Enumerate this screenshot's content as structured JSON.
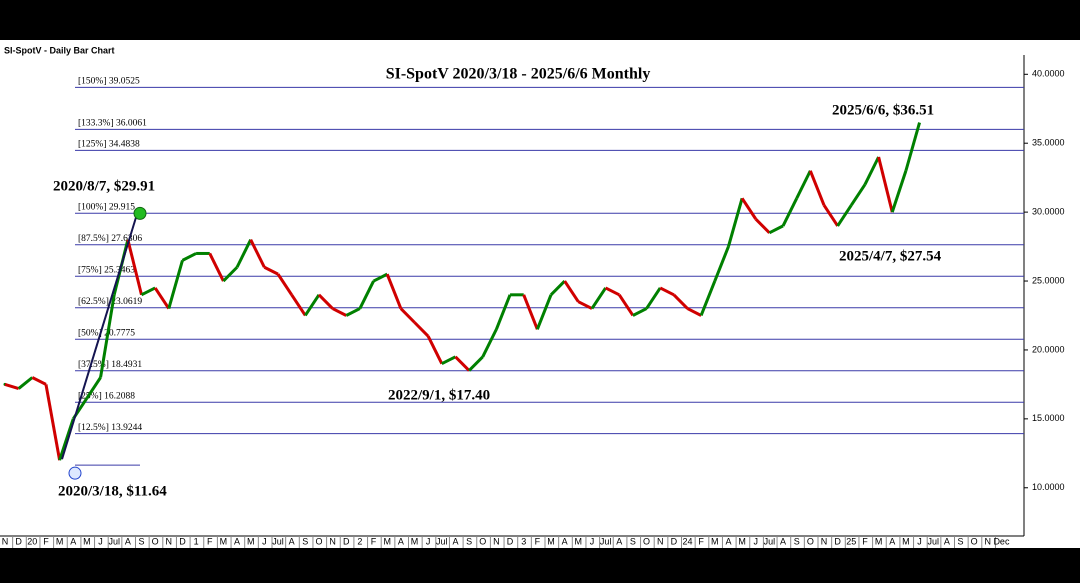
{
  "chart_data": {
    "type": "line",
    "header": "SI-SpotV - Daily Bar Chart",
    "title": "SI-SpotV 2020/3/18 - 2025/6/6 Monthly",
    "categories": [
      "N",
      "D",
      "20",
      "F",
      "M",
      "A",
      "M",
      "J",
      "Jul",
      "A",
      "S",
      "O",
      "N",
      "D",
      "1",
      "F",
      "M",
      "A",
      "M",
      "J",
      "Jul",
      "A",
      "S",
      "O",
      "N",
      "D",
      "2",
      "F",
      "M",
      "A",
      "M",
      "J",
      "Jul",
      "A",
      "S",
      "O",
      "N",
      "D",
      "3",
      "F",
      "M",
      "A",
      "M",
      "J",
      "Jul",
      "A",
      "S",
      "O",
      "N",
      "D",
      "24",
      "F",
      "M",
      "A",
      "M",
      "J",
      "Jul",
      "A",
      "S",
      "O",
      "N",
      "D",
      "25",
      "F",
      "M",
      "A",
      "M",
      "J",
      "Jul",
      "A",
      "S",
      "O",
      "N",
      "Dec"
    ],
    "series": [
      {
        "name": "SI-SpotV",
        "up_color": "#008000",
        "down_color": "#d00000",
        "values": [
          17.5,
          17.2,
          18,
          17.5,
          12,
          15,
          16.5,
          18,
          24,
          28,
          24,
          24.5,
          23,
          26.5,
          27,
          27,
          25,
          26,
          28,
          26,
          25.5,
          24,
          22.5,
          24,
          23,
          22.5,
          23,
          25,
          25.5,
          23,
          22,
          21,
          19,
          19.5,
          18.5,
          19.5,
          21.5,
          24,
          24,
          21.5,
          24,
          25,
          23.5,
          23,
          24.5,
          24,
          22.5,
          23,
          24.5,
          24,
          23,
          22.5,
          25,
          27.5,
          31,
          29.5,
          28.5,
          29,
          31,
          33,
          30.5,
          29,
          30.5,
          32,
          34,
          30,
          33,
          36.5,
          null,
          null,
          null,
          null,
          null,
          null
        ]
      }
    ],
    "fib_levels": [
      {
        "value": 39.0525,
        "label": "[150%] 39.0525"
      },
      {
        "value": 36.0061,
        "label": "[133.3%] 36.0061"
      },
      {
        "value": 34.4838,
        "label": "[125%] 34.4838"
      },
      {
        "value": 29.915,
        "label": "[100%] 29.915"
      },
      {
        "value": 27.6306,
        "label": "[87.5%] 27.6306"
      },
      {
        "value": 25.3463,
        "label": "[75%] 25.3463"
      },
      {
        "value": 23.0619,
        "label": "[62.5%] 23.0619"
      },
      {
        "value": 20.7775,
        "label": "[50%] 20.7775"
      },
      {
        "value": 18.4931,
        "label": "[37.5%] 18.4931"
      },
      {
        "value": 16.2088,
        "label": "[25%] 16.2088"
      },
      {
        "value": 13.9244,
        "label": "[12.5%] 13.9244"
      }
    ],
    "annotations": [
      {
        "text": "2020/3/18, $11.64",
        "value": 11.64
      },
      {
        "text": "2020/8/7, $29.91",
        "value": 29.91
      },
      {
        "text": "2022/9/1, $17.40",
        "value": 17.4
      },
      {
        "text": "2025/4/7, $27.54",
        "value": 27.54
      },
      {
        "text": "2025/6/6, $36.51",
        "value": 36.51
      }
    ],
    "ylim": [
      6.5,
      41.4
    ],
    "yticks": [
      {
        "value": 10,
        "label": "10.0000"
      },
      {
        "value": 15,
        "label": "15.0000"
      },
      {
        "value": 20,
        "label": "20.0000"
      },
      {
        "value": 25,
        "label": "25.0000"
      },
      {
        "value": 30,
        "label": "30.0000"
      },
      {
        "value": 35,
        "label": "35.0000"
      },
      {
        "value": 40,
        "label": "40.0000"
      }
    ]
  }
}
